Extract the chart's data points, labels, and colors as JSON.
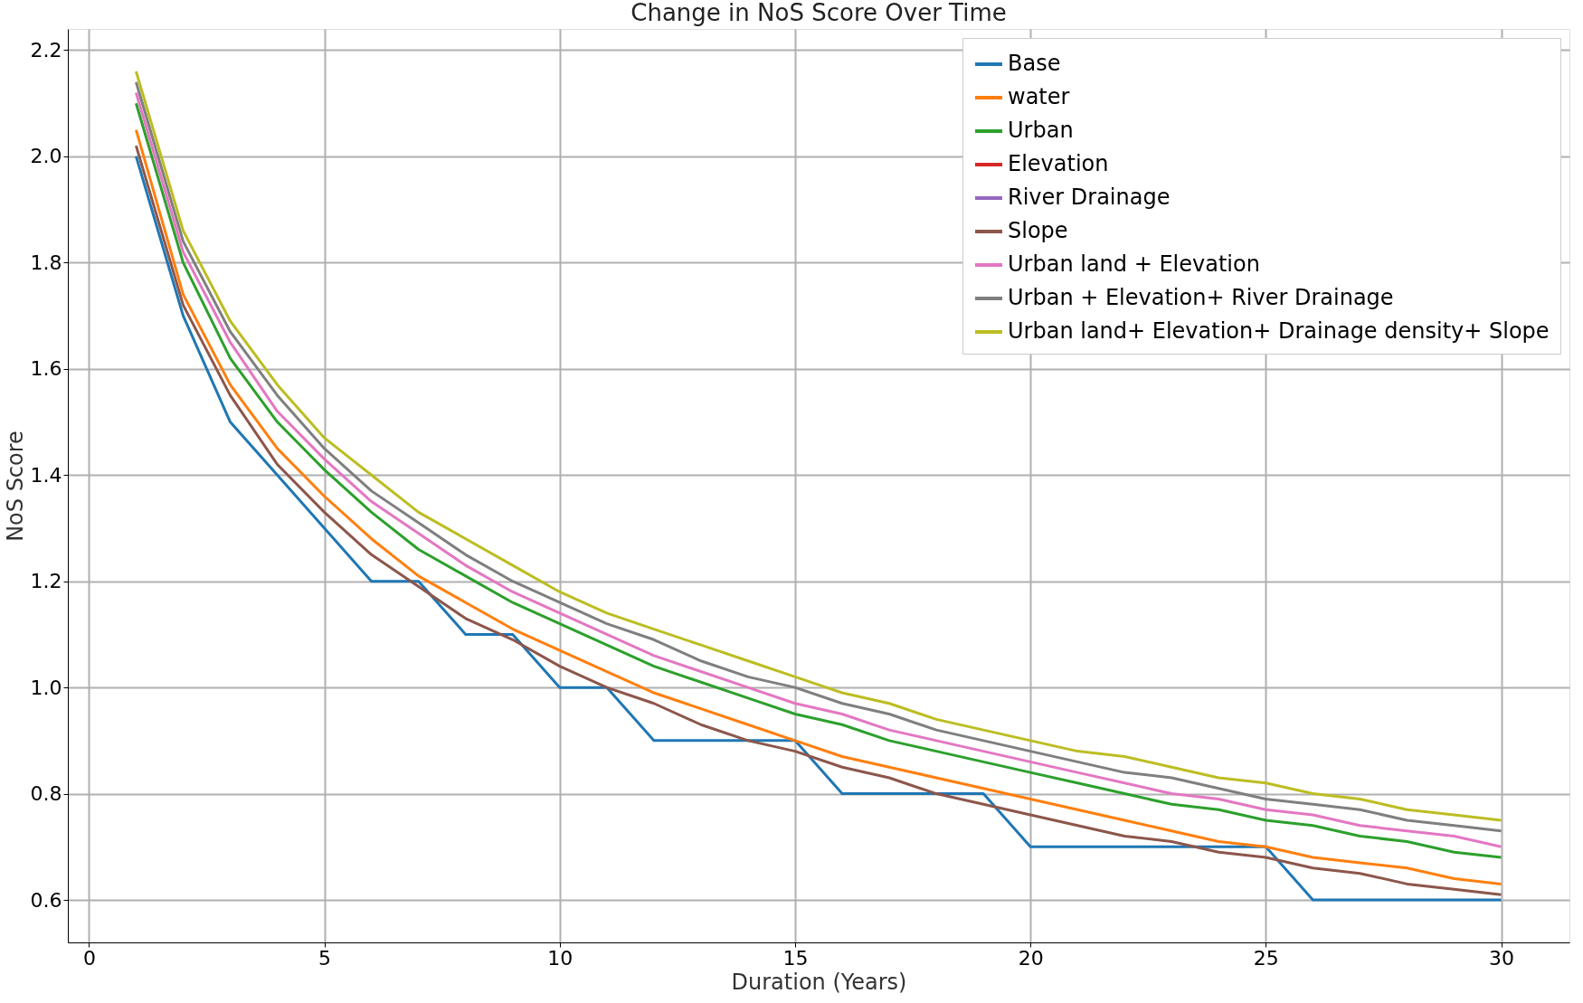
{
  "chart_data": {
    "type": "line",
    "title": "Change in NoS Score Over Time",
    "xlabel": "Duration (Years)",
    "ylabel": "NoS Score",
    "x": [
      1,
      2,
      3,
      4,
      5,
      6,
      7,
      8,
      9,
      10,
      11,
      12,
      13,
      14,
      15,
      16,
      17,
      18,
      19,
      20,
      21,
      22,
      23,
      24,
      25,
      26,
      27,
      28,
      29,
      30
    ],
    "series": [
      {
        "name": "Base",
        "color": "#1f77b4",
        "values": [
          2.0,
          1.7,
          1.5,
          1.4,
          1.3,
          1.2,
          1.2,
          1.1,
          1.1,
          1.0,
          1.0,
          0.9,
          0.9,
          0.9,
          0.9,
          0.8,
          0.8,
          0.8,
          0.8,
          0.7,
          0.7,
          0.7,
          0.7,
          0.7,
          0.7,
          0.6,
          0.6,
          0.6,
          0.6,
          0.6
        ]
      },
      {
        "name": "water",
        "color": "#ff7f0e",
        "values": [
          2.05,
          1.74,
          1.57,
          1.45,
          1.36,
          1.28,
          1.21,
          1.16,
          1.11,
          1.07,
          1.03,
          0.99,
          0.96,
          0.93,
          0.9,
          0.87,
          0.85,
          0.83,
          0.81,
          0.79,
          0.77,
          0.75,
          0.73,
          0.71,
          0.7,
          0.68,
          0.67,
          0.66,
          0.64,
          0.63
        ]
      },
      {
        "name": "Urban",
        "color": "#2ca02c",
        "values": [
          2.1,
          1.8,
          1.62,
          1.5,
          1.41,
          1.33,
          1.26,
          1.21,
          1.16,
          1.12,
          1.08,
          1.04,
          1.01,
          0.98,
          0.95,
          0.93,
          0.9,
          0.88,
          0.86,
          0.84,
          0.82,
          0.8,
          0.78,
          0.77,
          0.75,
          0.74,
          0.72,
          0.71,
          0.69,
          0.68
        ]
      },
      {
        "name": "Elevation",
        "color": "#d62728",
        "values": [
          null,
          null,
          null,
          null,
          null,
          null,
          null,
          null,
          null,
          null,
          null,
          null,
          null,
          null,
          null,
          null,
          null,
          null,
          null,
          null,
          null,
          null,
          null,
          null,
          null,
          null,
          null,
          null,
          null,
          null
        ]
      },
      {
        "name": "River Drainage",
        "color": "#9467bd",
        "values": [
          null,
          null,
          null,
          null,
          null,
          null,
          null,
          null,
          null,
          null,
          null,
          null,
          null,
          null,
          null,
          null,
          null,
          null,
          null,
          null,
          null,
          null,
          null,
          null,
          null,
          null,
          null,
          null,
          null,
          null
        ]
      },
      {
        "name": "Slope",
        "color": "#8c564b",
        "values": [
          2.02,
          1.72,
          1.55,
          1.42,
          1.33,
          1.25,
          1.19,
          1.13,
          1.09,
          1.04,
          1.0,
          0.97,
          0.93,
          0.9,
          0.88,
          0.85,
          0.83,
          0.8,
          0.78,
          0.76,
          0.74,
          0.72,
          0.71,
          0.69,
          0.68,
          0.66,
          0.65,
          0.63,
          0.62,
          0.61
        ]
      },
      {
        "name": "Urban land + Elevation",
        "color": "#e377c2",
        "values": [
          2.12,
          1.82,
          1.65,
          1.52,
          1.43,
          1.35,
          1.29,
          1.23,
          1.18,
          1.14,
          1.1,
          1.06,
          1.03,
          1.0,
          0.97,
          0.95,
          0.92,
          0.9,
          0.88,
          0.86,
          0.84,
          0.82,
          0.8,
          0.79,
          0.77,
          0.76,
          0.74,
          0.73,
          0.72,
          0.7
        ]
      },
      {
        "name": "Urban + Elevation+ River Drainage",
        "color": "#7f7f7f",
        "values": [
          2.14,
          1.84,
          1.67,
          1.55,
          1.45,
          1.37,
          1.31,
          1.25,
          1.2,
          1.16,
          1.12,
          1.09,
          1.05,
          1.02,
          1.0,
          0.97,
          0.95,
          0.92,
          0.9,
          0.88,
          0.86,
          0.84,
          0.83,
          0.81,
          0.79,
          0.78,
          0.77,
          0.75,
          0.74,
          0.73
        ]
      },
      {
        "name": "Urban land+ Elevation+ Drainage density+ Slope",
        "color": "#bcbd22",
        "values": [
          2.16,
          1.86,
          1.69,
          1.57,
          1.47,
          1.4,
          1.33,
          1.28,
          1.23,
          1.18,
          1.14,
          1.11,
          1.08,
          1.05,
          1.02,
          0.99,
          0.97,
          0.94,
          0.92,
          0.9,
          0.88,
          0.87,
          0.85,
          0.83,
          0.82,
          0.8,
          0.79,
          0.77,
          0.76,
          0.75
        ]
      }
    ],
    "xlim": [
      -0.45,
      31.45
    ],
    "xticks": [
      0,
      5,
      10,
      15,
      20,
      25,
      30
    ],
    "ylim": [
      0.52,
      2.24
    ],
    "yticks": [
      0.6,
      0.8,
      {
        "value": 1,
        "label": "1.0"
      },
      1.2,
      1.4,
      1.6,
      1.8,
      {
        "value": 2,
        "label": "2.0"
      },
      2.2
    ],
    "grid": true,
    "legend": "top right",
    "line_style": "solid",
    "marker": "none"
  }
}
